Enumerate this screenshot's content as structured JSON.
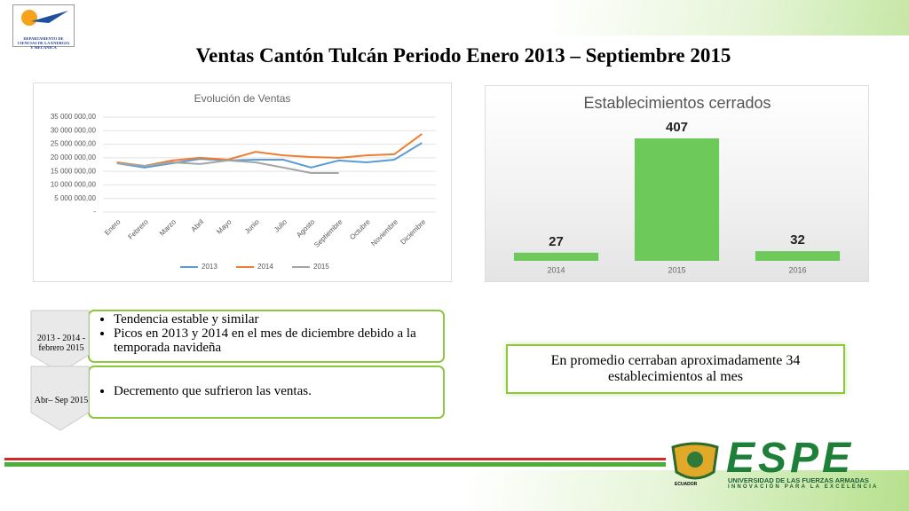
{
  "header": {
    "title": "Ventas Cantón Tulcán Periodo Enero 2013 – Septiembre 2015",
    "logo_text": "DEPARTAMENTO DE CIENCIAS DE LA ENERGIA Y MECANICA"
  },
  "chart_data": [
    {
      "type": "line",
      "title": "Evolución de Ventas",
      "categories": [
        "Enero",
        "Febrero",
        "Marzo",
        "Abril",
        "Mayo",
        "Junio",
        "Julio",
        "Agosto",
        "Septiembre",
        "Octubre",
        "Noviembre",
        "Diciembre"
      ],
      "series": [
        {
          "name": "2013",
          "color": "#5b9bd5",
          "values": [
            18000000,
            16400000,
            18000000,
            19600000,
            19000000,
            19300000,
            19300000,
            16400000,
            19000000,
            18300000,
            19300000,
            25500000
          ]
        },
        {
          "name": "2014",
          "color": "#ed7d31",
          "values": [
            18300000,
            17000000,
            19000000,
            20000000,
            19300000,
            22200000,
            20900000,
            20300000,
            20000000,
            20900000,
            21300000,
            28800000
          ]
        },
        {
          "name": "2015",
          "color": "#a5a5a5",
          "values": [
            18000000,
            17000000,
            18300000,
            17700000,
            19000000,
            18300000,
            16400000,
            14400000,
            14400000,
            null,
            null,
            null
          ]
        }
      ],
      "ylim": [
        0,
        35000000
      ],
      "yticks": [
        {
          "value": 0,
          "label": "-"
        },
        {
          "value": 5000000,
          "label": "5 000 000,00"
        },
        {
          "value": 10000000,
          "label": "10 000 000,00"
        },
        {
          "value": 15000000,
          "label": "15 000 000,00"
        },
        {
          "value": 20000000,
          "label": "20 000 000,00"
        },
        {
          "value": 25000000,
          "label": "25 000 000,00"
        },
        {
          "value": 30000000,
          "label": "30 000 000,00"
        },
        {
          "value": 35000000,
          "label": "35 000 000,00"
        }
      ],
      "grid": true,
      "legend": "bottom"
    },
    {
      "type": "bar",
      "title": "Establecimientos cerrados",
      "categories": [
        "2014",
        "2015",
        "2016"
      ],
      "values": [
        27,
        407,
        32
      ],
      "color": "#6cc95a"
    }
  ],
  "summary": {
    "rows": [
      {
        "label": "2013 - 2014 - febrero 2015",
        "bullets": [
          "Tendencia estable y similar",
          "Picos en 2013 y 2014 en el mes de diciembre debido a la temporada navideña"
        ]
      },
      {
        "label": "Abr– Sep 2015",
        "bullets": [
          "Decremento que sufrieron las ventas."
        ]
      }
    ]
  },
  "callout": "En promedio cerraban aproximadamente 34 establecimientos al mes",
  "footer": {
    "brand": "ESPE",
    "university": "UNIVERSIDAD DE LAS FUERZAS ARMADAS",
    "motto": "INNOVACIÓN PARA LA EXCELENCIA",
    "country": "ECUADOR"
  }
}
